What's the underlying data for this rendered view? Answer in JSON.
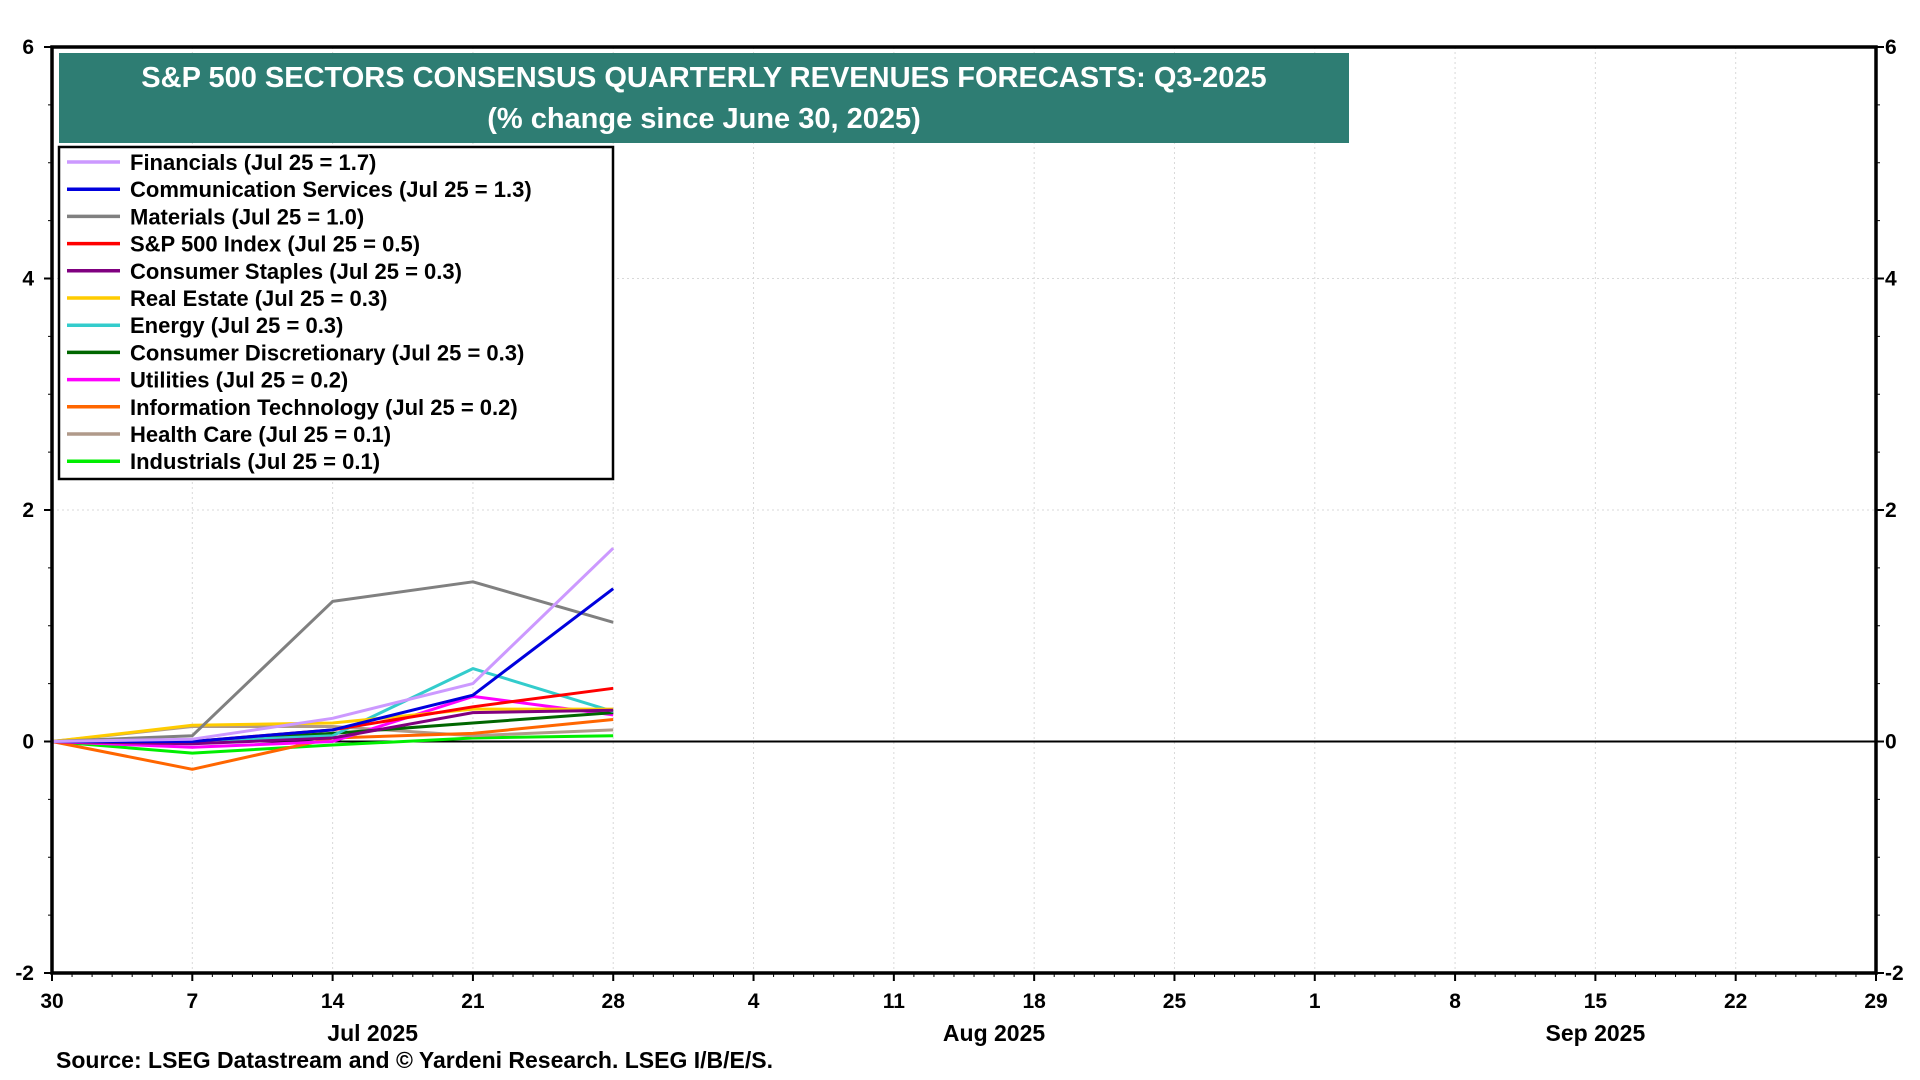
{
  "chart_data": {
    "type": "line",
    "title": "S&P 500 SECTORS CONSENSUS QUARTERLY REVENUES FORECASTS: Q3-2025",
    "subtitle": "(% change since June 30, 2025)",
    "source": "Source: LSEG Datastream and © Yardeni Research. LSEG I/B/E/S.",
    "ylim": [
      -2,
      6
    ],
    "y_ticks": [
      "6",
      "4",
      "2",
      "0",
      "-2"
    ],
    "y_tick_values": [
      6,
      4,
      2,
      0,
      -2
    ],
    "x_dates": [
      "2025-06-30",
      "2025-07-07",
      "2025-07-14",
      "2025-07-21",
      "2025-07-28"
    ],
    "x_axis": {
      "start": "2025-06-30",
      "end": "2025-09-29",
      "ticks": [
        {
          "date": "2025-06-30",
          "label": "30"
        },
        {
          "date": "2025-07-07",
          "label": "7"
        },
        {
          "date": "2025-07-14",
          "label": "14"
        },
        {
          "date": "2025-07-21",
          "label": "21"
        },
        {
          "date": "2025-07-28",
          "label": "28"
        },
        {
          "date": "2025-08-04",
          "label": "4"
        },
        {
          "date": "2025-08-11",
          "label": "11"
        },
        {
          "date": "2025-08-18",
          "label": "18"
        },
        {
          "date": "2025-08-25",
          "label": "25"
        },
        {
          "date": "2025-09-01",
          "label": "1"
        },
        {
          "date": "2025-09-08",
          "label": "8"
        },
        {
          "date": "2025-09-15",
          "label": "15"
        },
        {
          "date": "2025-09-22",
          "label": "22"
        },
        {
          "date": "2025-09-29",
          "label": "29"
        }
      ],
      "months": [
        {
          "label": "Jul 2025",
          "date": "2025-07-16"
        },
        {
          "label": "Aug 2025",
          "date": "2025-08-16"
        },
        {
          "label": "Sep 2025",
          "date": "2025-09-15"
        }
      ]
    },
    "grid": true,
    "legend_position": "top-left",
    "colors": {
      "title_bg": "#2e7d73",
      "zero_line": "#000000",
      "grid": "#d9d9d9"
    },
    "series": [
      {
        "name": "Financials (Jul 25 = 1.7)",
        "color": "#cc99ff",
        "values": [
          0,
          0.02,
          0.2,
          0.5,
          1.67
        ]
      },
      {
        "name": "Communication Services (Jul 25 = 1.3)",
        "color": "#0000dd",
        "values": [
          0,
          0.0,
          0.1,
          0.4,
          1.32
        ]
      },
      {
        "name": "Materials (Jul 25 = 1.0)",
        "color": "#808080",
        "values": [
          0,
          0.05,
          1.21,
          1.38,
          1.03
        ]
      },
      {
        "name": "S&P 500 Index (Jul 25 = 0.5)",
        "color": "#ff0000",
        "values": [
          0,
          0.0,
          0.1,
          0.3,
          0.46
        ]
      },
      {
        "name": "Consumer Staples (Jul 25 = 0.3)",
        "color": "#800080",
        "values": [
          0,
          -0.02,
          0.03,
          0.25,
          0.27
        ]
      },
      {
        "name": "Real Estate (Jul 25 = 0.3)",
        "color": "#ffcc00",
        "values": [
          0,
          0.14,
          0.16,
          0.28,
          0.28
        ]
      },
      {
        "name": "Energy (Jul 25 = 0.3)",
        "color": "#33cccc",
        "values": [
          0,
          0.0,
          0.05,
          0.63,
          0.26
        ]
      },
      {
        "name": "Consumer Discretionary (Jul 25 = 0.3)",
        "color": "#006600",
        "values": [
          0,
          0.0,
          0.07,
          0.16,
          0.25
        ]
      },
      {
        "name": "Utilities (Jul 25 = 0.2)",
        "color": "#ff00ff",
        "values": [
          0,
          -0.05,
          0.0,
          0.39,
          0.23
        ]
      },
      {
        "name": "Information Technology (Jul 25 = 0.2)",
        "color": "#ff6600",
        "values": [
          0,
          -0.24,
          0.03,
          0.07,
          0.19
        ]
      },
      {
        "name": "Health Care (Jul 25 = 0.1)",
        "color": "#b09a8a",
        "values": [
          0,
          0.13,
          0.13,
          0.05,
          0.1
        ]
      },
      {
        "name": "Industrials (Jul 25 = 0.1)",
        "color": "#00ee00",
        "values": [
          0,
          -0.1,
          -0.03,
          0.03,
          0.05
        ]
      }
    ]
  }
}
